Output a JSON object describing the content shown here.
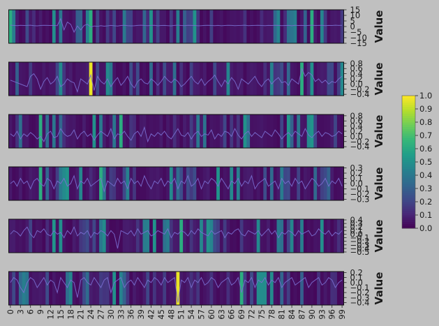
{
  "chart_data": {
    "type": "heatmap",
    "colormap": "viridis",
    "background": "#c0c0c0",
    "x_ticks": [
      0,
      3,
      6,
      9,
      12,
      15,
      18,
      21,
      24,
      27,
      30,
      33,
      36,
      39,
      42,
      45,
      48,
      51,
      54,
      57,
      60,
      63,
      66,
      69,
      72,
      75,
      78,
      81,
      84,
      87,
      90,
      93,
      96,
      99
    ],
    "n_points": 100,
    "colorbar": {
      "min": 0.0,
      "max": 1.0,
      "ticks": [
        "0.0",
        "0.1",
        "0.2",
        "0.3",
        "0.4",
        "0.5",
        "0.6",
        "0.7",
        "0.8",
        "0.9",
        "1.0"
      ]
    },
    "panels": [
      {
        "ylabel": "Value",
        "yticks": [
          "15",
          "10",
          "5",
          "0",
          "−5",
          "−10",
          "−15"
        ],
        "ytick_values": [
          15,
          10,
          5,
          0,
          -5,
          -10,
          -15
        ],
        "ylim": [
          -15,
          15
        ],
        "bright_columns": [
          0,
          24,
          90
        ],
        "line": [
          1.2,
          1.0,
          0.8,
          1.1,
          0.9,
          1.0,
          1.2,
          0.8,
          0.6,
          0.9,
          1.1,
          1.0,
          0.9,
          1.0,
          0.8,
          7.0,
          -3.0,
          4.0,
          2.0,
          -5.0,
          0.5,
          -3.0,
          1.0,
          2.0,
          -0.5,
          0.5,
          0.2,
          0.8,
          0.3,
          0.6,
          1.0,
          0.7,
          0.5,
          0.9,
          1.1,
          0.8,
          0.6,
          0.7,
          1.0,
          1.2,
          0.9,
          0.8,
          1.0,
          1.1,
          0.7,
          0.9,
          1.0,
          0.8,
          0.6,
          1.0,
          1.2,
          0.9,
          0.8,
          1.1,
          1.0,
          0.9,
          0.7,
          0.8,
          1.0,
          1.1,
          0.9,
          0.8,
          1.0,
          0.7,
          0.9,
          1.1,
          1.0,
          0.8,
          0.9,
          1.0,
          1.2,
          0.8,
          0.9,
          1.0,
          1.1,
          0.9,
          0.8,
          1.0,
          0.9,
          1.1,
          1.0,
          0.8,
          0.9,
          1.0,
          0.7,
          1.1,
          0.9,
          1.0,
          0.8,
          1.0,
          1.2,
          0.9,
          1.0,
          1.1,
          0.8,
          1.0,
          0.9,
          1.2,
          1.0,
          1.1
        ]
      },
      {
        "ylabel": "Value",
        "yticks": [
          "0.8",
          "0.6",
          "0.4",
          "0.2",
          "0.0",
          "−0.2",
          "−0.4"
        ],
        "ytick_values": [
          0.8,
          0.6,
          0.4,
          0.2,
          0.0,
          -0.2,
          -0.4
        ],
        "ylim": [
          -0.45,
          0.85
        ],
        "bright_columns": [
          24,
          87
        ],
        "line": [
          0.15,
          0.1,
          0.05,
          0.0,
          -0.05,
          -0.1,
          0.3,
          0.4,
          0.2,
          -0.2,
          0.1,
          0.25,
          0.0,
          0.1,
          0.3,
          -0.1,
          0.0,
          0.2,
          0.1,
          0.05,
          -0.3,
          0.2,
          0.1,
          0.0,
          0.35,
          -0.25,
          0.3,
          0.1,
          0.0,
          0.2,
          -0.1,
          0.1,
          0.25,
          -0.05,
          0.1,
          0.3,
          0.0,
          -0.15,
          0.1,
          0.2,
          0.05,
          0.0,
          0.2,
          0.1,
          -0.05,
          0.1,
          0.3,
          0.15,
          0.05,
          0.2,
          0.1,
          -0.1,
          0.0,
          0.15,
          0.3,
          0.1,
          0.0,
          0.2,
          -0.05,
          0.1,
          0.2,
          0.35,
          0.1,
          -0.1,
          0.15,
          0.0,
          0.25,
          0.1,
          -0.2,
          0.2,
          0.1,
          0.0,
          0.15,
          0.3,
          0.05,
          -0.1,
          0.1,
          0.2,
          0.0,
          0.15,
          0.25,
          0.05,
          0.1,
          -0.05,
          0.2,
          0.1,
          0.0,
          0.6,
          0.3,
          0.45,
          0.35,
          0.1,
          0.2,
          0.05,
          0.15,
          0.0,
          0.1,
          0.05,
          0.2,
          0.3
        ]
      },
      {
        "ylabel": "Value",
        "yticks": [
          "0.8",
          "0.6",
          "0.4",
          "0.2",
          "0.0",
          "−0.2",
          "−0.4"
        ],
        "ytick_values": [
          0.8,
          0.6,
          0.4,
          0.2,
          0.0,
          -0.2,
          -0.4
        ],
        "ylim": [
          -0.45,
          0.85
        ],
        "bright_columns": [
          9,
          33
        ],
        "line": [
          0.1,
          0.0,
          0.2,
          -0.1,
          0.1,
          0.0,
          0.15,
          0.05,
          -0.1,
          0.0,
          -0.2,
          0.1,
          0.2,
          -0.05,
          0.0,
          0.3,
          0.1,
          0.0,
          0.05,
          0.25,
          -0.1,
          0.1,
          0.2,
          0.0,
          0.1,
          -0.15,
          0.05,
          0.2,
          0.1,
          0.0,
          0.3,
          -0.1,
          0.1,
          0.05,
          0.2,
          0.0,
          -0.15,
          0.1,
          0.2,
          0.0,
          0.35,
          -0.2,
          0.1,
          0.0,
          0.15,
          0.05,
          0.2,
          0.0,
          -0.1,
          0.1,
          0.3,
          0.05,
          0.0,
          0.15,
          -0.1,
          0.1,
          0.2,
          0.0,
          0.1,
          0.05,
          0.25,
          -0.1,
          0.1,
          0.0,
          0.2,
          0.15,
          0.0,
          0.3,
          0.05,
          -0.1,
          0.1,
          0.2,
          0.0,
          0.15,
          0.05,
          -0.05,
          0.2,
          0.1,
          0.0,
          0.25,
          0.1,
          -0.1,
          0.05,
          0.15,
          0.0,
          0.2,
          0.1,
          0.0,
          0.3,
          0.05,
          -0.05,
          0.1,
          0.2,
          0.0,
          0.15,
          0.1,
          0.0,
          0.05,
          0.2,
          0.1
        ]
      },
      {
        "ylabel": "Value",
        "yticks": [
          "0.3",
          "0.2",
          "0.1",
          "0.0",
          "−0.1",
          "−0.2",
          "−0.3"
        ],
        "ytick_values": [
          0.3,
          0.2,
          0.1,
          0.0,
          -0.1,
          -0.2,
          -0.3
        ],
        "ylim": [
          -0.32,
          0.32
        ],
        "bright_columns": [
          9,
          27
        ],
        "line": [
          0.0,
          0.05,
          -0.05,
          0.1,
          0.0,
          0.05,
          -0.1,
          0.05,
          0.1,
          0.0,
          -0.05,
          0.1,
          0.05,
          -0.1,
          0.05,
          0.0,
          0.1,
          -0.05,
          0.0,
          0.15,
          -0.1,
          0.05,
          0.0,
          0.1,
          -0.05,
          0.0,
          0.05,
          0.1,
          -0.15,
          0.05,
          0.0,
          -0.05,
          0.1,
          0.0,
          0.05,
          -0.1,
          0.1,
          0.0,
          0.05,
          -0.05,
          0.15,
          0.0,
          -0.1,
          0.05,
          0.0,
          0.1,
          -0.05,
          0.05,
          0.0,
          0.1,
          -0.1,
          0.05,
          0.0,
          0.15,
          -0.05,
          0.0,
          0.1,
          -0.1,
          0.05,
          0.0,
          0.1,
          0.05,
          -0.05,
          0.1,
          0.0,
          -0.1,
          0.05,
          0.0,
          0.1,
          -0.05,
          0.05,
          0.0,
          0.15,
          -0.1,
          0.0,
          0.05,
          0.1,
          -0.05,
          0.0,
          0.05,
          -0.1,
          0.1,
          0.0,
          0.05,
          -0.05,
          0.1,
          0.0,
          0.05,
          -0.1,
          0.0,
          0.1,
          0.05,
          -0.05,
          0.0,
          0.1,
          -0.05,
          0.05,
          0.0,
          0.1,
          -0.05
        ]
      },
      {
        "ylabel": "Value",
        "yticks": [
          "0.4",
          "0.3",
          "0.2",
          "0.1",
          "0.0",
          "−0.1",
          "−0.2",
          "−0.3",
          "−0.4",
          "−0.5"
        ],
        "ytick_values": [
          0.4,
          0.3,
          0.2,
          0.1,
          0.0,
          -0.1,
          -0.2,
          -0.3,
          -0.4,
          -0.5
        ],
        "ylim": [
          -0.52,
          0.42
        ],
        "bright_columns": [
          51
        ],
        "line": [
          0.0,
          0.1,
          0.05,
          -0.05,
          0.1,
          0.2,
          0.0,
          -0.1,
          0.1,
          0.05,
          0.15,
          0.0,
          -0.05,
          0.1,
          0.0,
          0.05,
          -0.1,
          0.1,
          0.0,
          0.2,
          -0.05,
          0.05,
          0.0,
          0.1,
          -0.1,
          0.05,
          0.0,
          0.1,
          0.05,
          -0.05,
          0.1,
          0.0,
          -0.4,
          0.1,
          0.05,
          0.0,
          0.1,
          -0.05,
          0.15,
          0.0,
          0.05,
          0.1,
          -0.05,
          0.0,
          0.1,
          0.05,
          0.0,
          0.15,
          -0.1,
          0.05,
          0.0,
          0.1,
          0.05,
          -0.05,
          0.1,
          0.0,
          0.15,
          0.05,
          0.0,
          -0.05,
          0.1,
          0.0,
          0.05,
          0.1,
          -0.1,
          0.05,
          0.0,
          0.1,
          0.15,
          0.0,
          -0.05,
          0.1,
          0.05,
          0.0,
          0.1,
          -0.05,
          0.05,
          0.15,
          0.0,
          0.1,
          -0.1,
          0.05,
          0.0,
          0.1,
          0.05,
          -0.05,
          0.1,
          0.0,
          0.05,
          0.1,
          -0.05,
          0.0,
          0.15,
          0.05,
          0.0,
          0.1,
          -0.05,
          0.05,
          0.0,
          0.1
        ]
      },
      {
        "ylabel": "Value",
        "yticks": [
          "0.2",
          "0.1",
          "0.0",
          "−0.1",
          "−0.2",
          "−0.3",
          "−0.4"
        ],
        "ytick_values": [
          0.2,
          0.1,
          0.0,
          -0.1,
          -0.2,
          -0.3,
          -0.4
        ],
        "ylim": [
          -0.45,
          0.22
        ],
        "bright_columns": [
          50,
          69
        ],
        "line": [
          0.0,
          0.1,
          0.05,
          -0.1,
          -0.2,
          0.0,
          0.1,
          0.05,
          -0.1,
          0.0,
          0.1,
          -0.05,
          0.05,
          0.0,
          -0.2,
          0.1,
          0.0,
          -0.1,
          0.05,
          0.0,
          -0.3,
          0.05,
          0.1,
          0.0,
          -0.05,
          0.1,
          0.0,
          -0.1,
          0.05,
          0.1,
          -0.2,
          0.0,
          0.05,
          0.1,
          -0.1,
          0.0,
          0.05,
          -0.05,
          0.1,
          0.0,
          -0.1,
          0.05,
          0.0,
          0.1,
          0.05,
          -0.05,
          0.1,
          0.0,
          0.05,
          0.1,
          -0.4,
          0.05,
          0.0,
          0.1,
          -0.1,
          0.05,
          0.0,
          0.1,
          -0.05,
          0.0,
          0.1,
          0.05,
          -0.1,
          0.0,
          0.05,
          0.1,
          -0.05,
          0.0,
          0.1,
          -0.2,
          0.05,
          0.0,
          0.1,
          -0.1,
          0.05,
          0.0,
          0.1,
          -0.05,
          0.05,
          0.0,
          0.1,
          -0.1,
          0.0,
          0.05,
          0.1,
          -0.05,
          0.0,
          0.05,
          0.1,
          -0.1,
          0.0,
          0.05,
          0.1,
          -0.05,
          0.0,
          0.1,
          0.05,
          -0.1,
          0.0,
          0.05
        ]
      }
    ]
  }
}
